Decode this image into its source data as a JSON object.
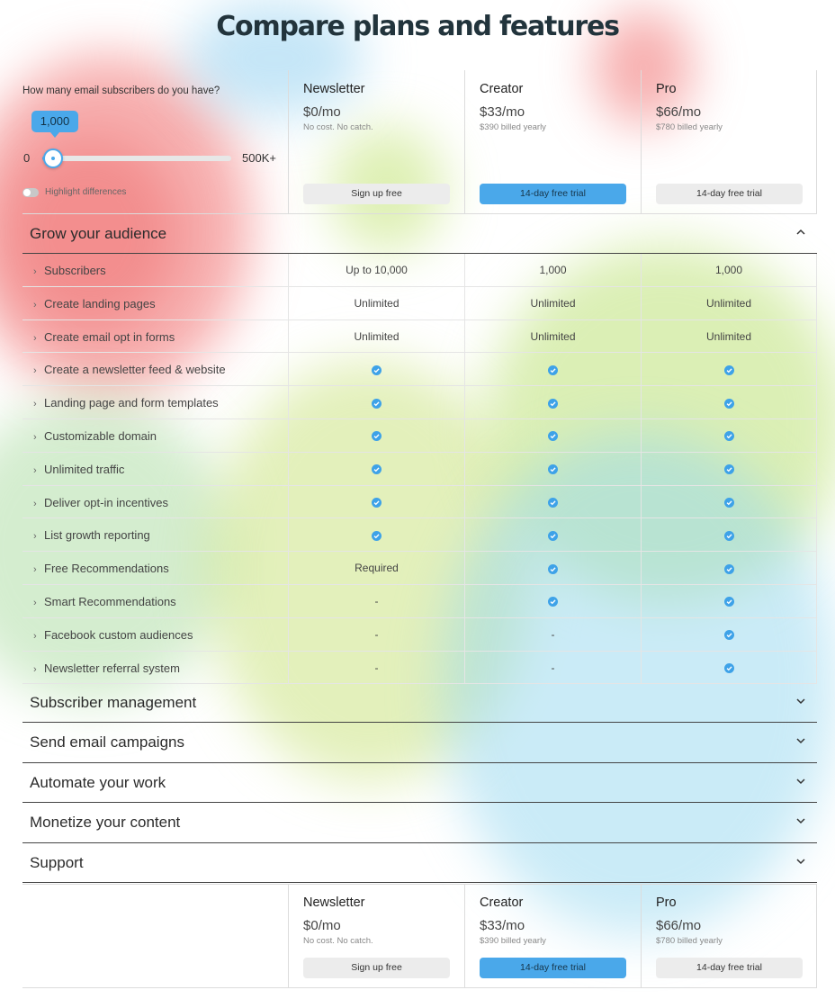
{
  "page": {
    "title": "Compare plans and features"
  },
  "colors": {
    "accent": "#4aa8ea",
    "check": "#3ea2e8",
    "heat_red": "#f07a7a",
    "heat_green": "#b8e08a",
    "heat_blue": "#9fd8f2"
  },
  "slider": {
    "question": "How many email subscribers do you have?",
    "value_label": "1,000",
    "value_fraction": 0.02,
    "min_label": "0",
    "max_label": "500K+",
    "toggle_label": "Highlight differences"
  },
  "plans": [
    {
      "name": "Newsletter",
      "price": "$0",
      "per": "/mo",
      "sub": "No cost. No catch.",
      "button": "Sign up free"
    },
    {
      "name": "Creator",
      "price": "$33",
      "per": "/mo",
      "sub": "$390 billed yearly",
      "button": "14-day free trial"
    },
    {
      "name": "Pro",
      "price": "$66",
      "per": "/mo",
      "sub": "$780 billed yearly",
      "button": "14-day free trial"
    }
  ],
  "sections": {
    "grow": {
      "title": "Grow your audience",
      "rows": [
        {
          "label": "Subscribers",
          "values": [
            "Up to 10,000",
            "1,000",
            "1,000"
          ]
        },
        {
          "label": "Create landing pages",
          "values": [
            "Unlimited",
            "Unlimited",
            "Unlimited"
          ]
        },
        {
          "label": "Create email opt in forms",
          "values": [
            "Unlimited",
            "Unlimited",
            "Unlimited"
          ]
        },
        {
          "label": "Create a newsletter feed & website",
          "values": [
            "check",
            "check",
            "check"
          ]
        },
        {
          "label": "Landing page and form templates",
          "values": [
            "check",
            "check",
            "check"
          ]
        },
        {
          "label": "Customizable domain",
          "values": [
            "check",
            "check",
            "check"
          ]
        },
        {
          "label": "Unlimited traffic",
          "values": [
            "check",
            "check",
            "check"
          ]
        },
        {
          "label": "Deliver opt-in incentives",
          "values": [
            "check",
            "check",
            "check"
          ]
        },
        {
          "label": "List growth reporting",
          "values": [
            "check",
            "check",
            "check"
          ]
        },
        {
          "label": "Free Recommendations",
          "values": [
            "Required",
            "check",
            "check"
          ]
        },
        {
          "label": "Smart Recommendations",
          "values": [
            "-",
            "check",
            "check"
          ]
        },
        {
          "label": "Facebook custom audiences",
          "values": [
            "-",
            "-",
            "check"
          ]
        },
        {
          "label": "Newsletter referral system",
          "values": [
            "-",
            "-",
            "check"
          ]
        }
      ]
    },
    "collapsed": [
      "Subscriber management",
      "Send email campaigns",
      "Automate your work",
      "Monetize your content",
      "Support"
    ]
  }
}
